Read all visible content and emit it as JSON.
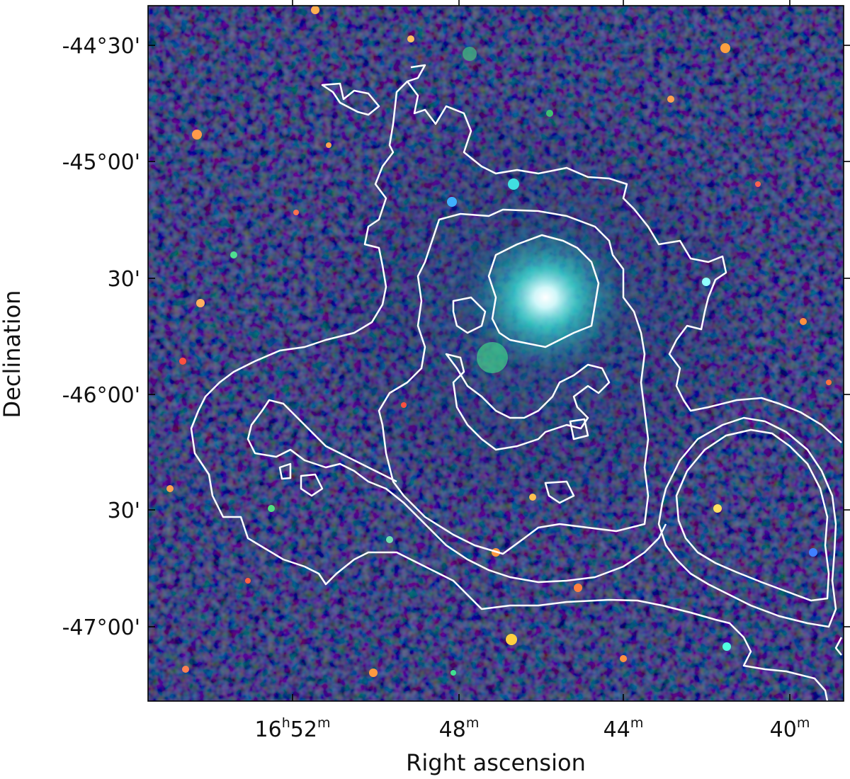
{
  "figure": {
    "xlabel": "Right ascension",
    "ylabel": "Declination",
    "x_ticks": [
      {
        "hours": "16",
        "minutes": "52",
        "h_unit": "h",
        "m_unit": "m"
      },
      {
        "minutes": "48",
        "m_unit": "m"
      },
      {
        "minutes": "44",
        "m_unit": "m"
      },
      {
        "minutes": "40",
        "m_unit": "m"
      }
    ],
    "y_ticks": [
      "-44°30'",
      "-45°00'",
      "30'",
      "-46°00'",
      "30'",
      "-47°00'"
    ],
    "colors": {
      "background_sky": "#0a0a4a",
      "contour": "#ffffff",
      "nebula_core": "#e8ffff",
      "nebula_glow": "#2fd6c8"
    }
  }
}
